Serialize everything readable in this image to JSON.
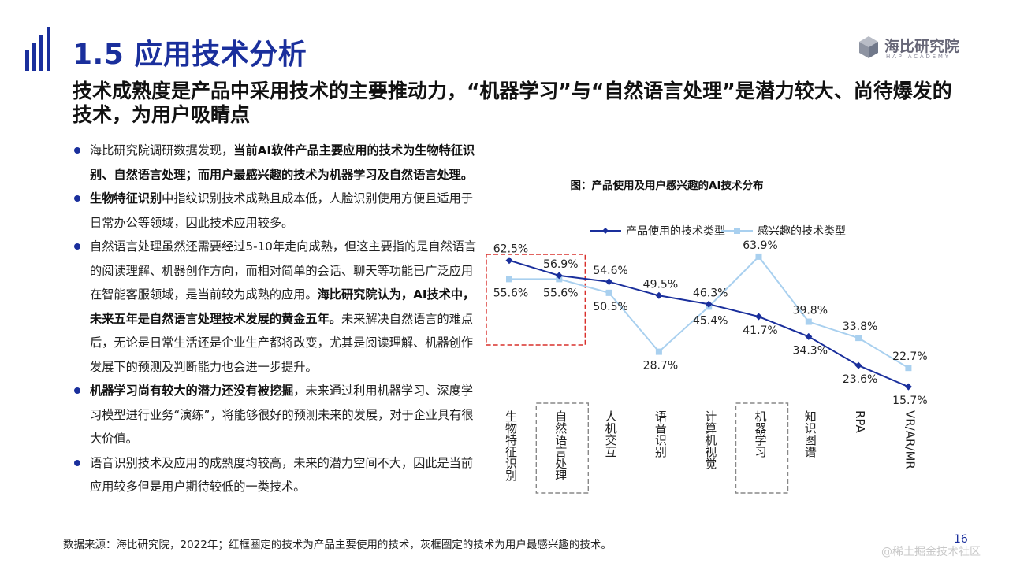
{
  "header": {
    "title": "1.5 应用技术分析",
    "logo_cn": "海比研究院",
    "logo_en": "HAP ACADEMY"
  },
  "headline": "技术成熟度是产品中采用技术的主要推动力，“机器学习”与“自然语言处理”是潜力较大、尚待爆发的技术，为用户吸睛点",
  "bullets": [
    {
      "segments": [
        {
          "text": "海比研究院调研数据发现，",
          "bold": false
        },
        {
          "text": "当前AI软件产品主要应用的技术为生物特征识别、自然语言处理；而用户最感兴趣的技术为机器学习及自然语言处理。",
          "bold": true
        }
      ]
    },
    {
      "segments": [
        {
          "text": "生物特征识别",
          "bold": true
        },
        {
          "text": "中指纹识别技术成熟且成本低，人脸识别使用方便且适用于日常办公等领域，因此技术应用较多。",
          "bold": false
        }
      ]
    },
    {
      "segments": [
        {
          "text": "自然语言处理虽然还需要经过5-10年走向成熟，但这主要指的是自然语言的阅读理解、机器创作方向，而相对简单的会话、聊天等功能已广泛应用在智能客服领域，是当前较为成熟的应用。",
          "bold": false
        },
        {
          "text": "海比研究院认为，AI技术中，未来五年是自然语言处理技术发展的黄金五年。",
          "bold": true
        },
        {
          "text": "未来解决自然语言的难点后，无论是日常生活还是企业生产都将改变，尤其是阅读理解、机器创作发展下的预测及判断能力也会进一步提升。",
          "bold": false
        }
      ]
    },
    {
      "segments": [
        {
          "text": "机器学习尚有较大的潜力还没有被挖掘",
          "bold": true
        },
        {
          "text": "，未来通过利用机器学习、深度学习模型进行业务“演练”，将能够很好的预测未来的发展，对于企业具有很大价值。",
          "bold": false
        }
      ]
    },
    {
      "segments": [
        {
          "text": "语音识别技术及应用的成熟度均较高，未来的潜力空间不大，因此是当前应用较多但是用户期待较低的一类技术。",
          "bold": false
        }
      ]
    }
  ],
  "chart_data": {
    "type": "line",
    "title": "图：产品使用及用户感兴趣的AI技术分布",
    "categories": [
      "生物特征识别",
      "自然语言处理",
      "人机交互",
      "语音识别",
      "计算机视觉",
      "机器学习",
      "知识图谱",
      "RPA",
      "VR/AR/MR"
    ],
    "series": [
      {
        "name": "产品使用的技术类型",
        "values": [
          62.5,
          56.9,
          54.6,
          49.5,
          46.3,
          41.7,
          34.3,
          23.6,
          15.7
        ],
        "color": "#1a2f9c",
        "marker": "diamond"
      },
      {
        "name": "感兴趣的技术类型",
        "values": [
          55.6,
          55.6,
          50.5,
          28.7,
          45.4,
          63.9,
          39.8,
          33.8,
          22.7
        ],
        "color": "#a9d0ef",
        "marker": "square"
      }
    ],
    "value_suffix": "%",
    "ylim": [
      0,
      70
    ],
    "grid": false,
    "legend": "top",
    "highlight_red": [
      "生物特征识别",
      "自然语言处理"
    ],
    "highlight_gray": [
      "自然语言处理",
      "机器学习"
    ]
  },
  "source_note": "数据来源：海比研究院，2022年；红框圈定的技术为产品主要使用的技术，灰框圈定的技术为用户最感兴趣的技术。",
  "page_number": "16",
  "watermark": "@稀土掘金技术社区"
}
